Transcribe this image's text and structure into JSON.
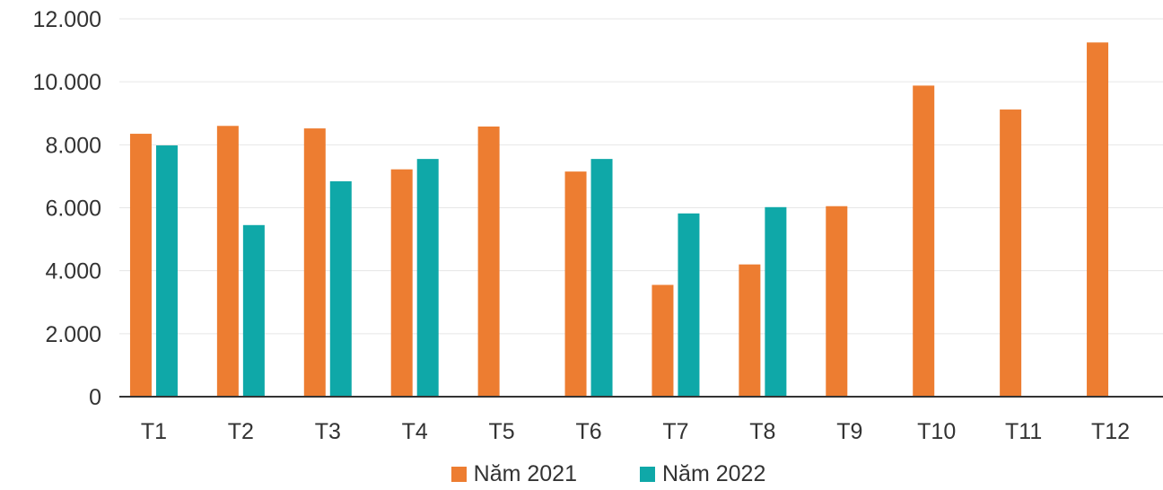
{
  "chart_data": {
    "type": "bar",
    "categories": [
      "T1",
      "T2",
      "T3",
      "T4",
      "T5",
      "T6",
      "T7",
      "T8",
      "T9",
      "T10",
      "T11",
      "T12"
    ],
    "series": [
      {
        "name": "Năm 2021",
        "color": "#ED7D31",
        "values": [
          8350,
          8600,
          8520,
          7220,
          8580,
          7150,
          3550,
          4200,
          6050,
          9880,
          9120,
          11250
        ]
      },
      {
        "name": "Năm 2022",
        "color": "#0FA8A8",
        "values": [
          7980,
          5450,
          6840,
          7550,
          null,
          7550,
          5820,
          6020,
          null,
          null,
          null,
          null
        ]
      }
    ],
    "yticks": [
      "0",
      "2.000",
      "4.000",
      "6.000",
      "8.000",
      "10.000",
      "12.000"
    ],
    "ylim": [
      0,
      12000
    ],
    "grid": true,
    "legend_position": "bottom"
  }
}
